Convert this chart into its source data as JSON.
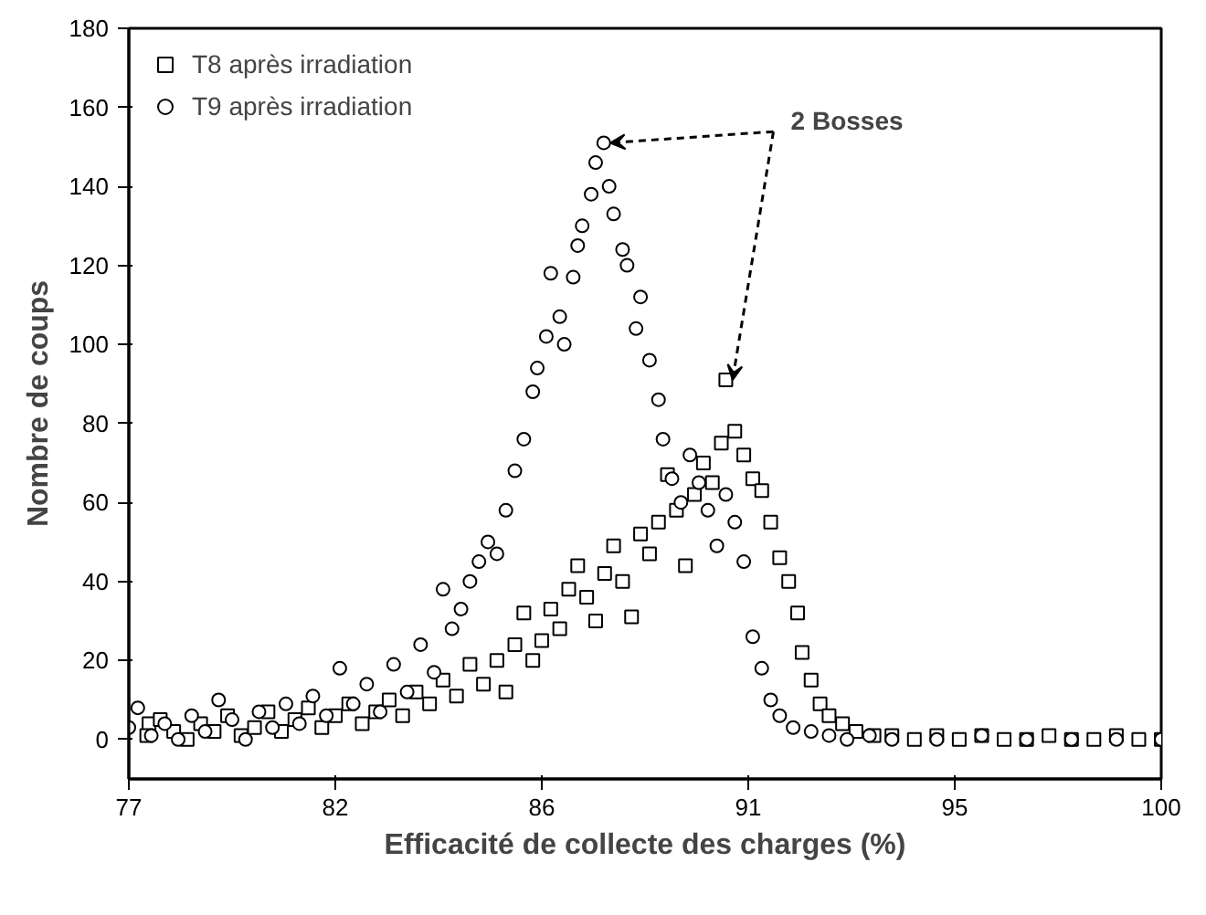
{
  "chart_data": {
    "type": "scatter",
    "xlabel": "Efficacité de collecte des charges (%)",
    "ylabel": "Nombre de coups",
    "xlim": [
      77,
      100
    ],
    "xticks": [
      77,
      {
        "value": 81.6,
        "label": "82"
      },
      {
        "value": 86.2,
        "label": "86"
      },
      {
        "value": 90.8,
        "label": "91"
      },
      {
        "value": 95.4,
        "label": "95"
      },
      100
    ],
    "ylim": [
      -10,
      180
    ],
    "yticks": [
      0,
      20,
      40,
      60,
      80,
      100,
      120,
      140,
      160,
      180
    ],
    "grid": false,
    "legend": "top left",
    "annotations": [
      {
        "text": "2 Bosses",
        "x": 87.58,
        "y": 151
      }
    ],
    "series": [
      {
        "name": "T8 après irradiation",
        "color": "#000000",
        "marker": "square",
        "x": [
          77.45,
          77.4,
          77.7,
          78.0,
          78.3,
          78.6,
          78.9,
          79.2,
          79.5,
          79.8,
          80.1,
          80.4,
          80.7,
          81.0,
          81.3,
          81.6,
          81.9,
          82.2,
          82.5,
          82.8,
          83.1,
          83.4,
          83.7,
          84.0,
          84.3,
          84.6,
          84.9,
          85.2,
          85.4,
          85.6,
          85.8,
          86.0,
          86.2,
          86.4,
          86.6,
          86.8,
          87.0,
          87.2,
          87.4,
          87.6,
          87.8,
          88.0,
          88.2,
          88.4,
          88.6,
          88.8,
          89.0,
          89.2,
          89.4,
          89.6,
          89.8,
          90.0,
          90.2,
          90.3,
          90.5,
          90.7,
          90.9,
          91.1,
          91.3,
          91.5,
          91.7,
          91.9,
          92.0,
          92.2,
          92.4,
          92.6,
          92.9,
          93.2,
          93.6,
          94,
          94.5,
          95,
          95.5,
          96,
          96.5,
          97,
          97.5,
          98,
          98.5,
          99,
          99.5,
          100
        ],
        "values": [
          4,
          1,
          5,
          2,
          0,
          4,
          2,
          6,
          1,
          3,
          7,
          2,
          5,
          8,
          3,
          6,
          9,
          4,
          7,
          10,
          6,
          12,
          9,
          15,
          11,
          19,
          14,
          20,
          12,
          24,
          32,
          20,
          25,
          33,
          28,
          38,
          44,
          36,
          30,
          42,
          49,
          40,
          31,
          52,
          47,
          55,
          67,
          58,
          44,
          62,
          70,
          65,
          75,
          91,
          78,
          72,
          66,
          63,
          55,
          46,
          40,
          32,
          22,
          15,
          9,
          6,
          4,
          2,
          1,
          1,
          0,
          1,
          0,
          1,
          0,
          0,
          1,
          0,
          0,
          1,
          0,
          0
        ]
      },
      {
        "name": "T9 après irradiation",
        "color": "#000000",
        "marker": "circle",
        "x": [
          77.0,
          77.2,
          77.5,
          77.8,
          78.1,
          78.4,
          78.7,
          79.0,
          79.3,
          79.6,
          79.9,
          80.2,
          80.5,
          80.8,
          81.1,
          81.4,
          81.7,
          82.0,
          82.3,
          82.6,
          82.9,
          83.2,
          83.5,
          83.8,
          84.0,
          84.2,
          84.4,
          84.6,
          84.8,
          85.0,
          85.2,
          85.4,
          85.6,
          85.8,
          86.0,
          86.1,
          86.3,
          86.4,
          86.6,
          86.7,
          86.9,
          87.0,
          87.1,
          87.3,
          87.4,
          87.58,
          87.7,
          87.8,
          88.0,
          88.1,
          88.3,
          88.4,
          88.6,
          88.8,
          88.9,
          89.1,
          89.3,
          89.5,
          89.7,
          89.9,
          90.1,
          90.3,
          90.5,
          90.7,
          90.9,
          91.1,
          91.3,
          91.5,
          91.8,
          92.2,
          92.6,
          93,
          93.5,
          94,
          95,
          96,
          97,
          98,
          99,
          100
        ],
        "values": [
          3,
          8,
          1,
          4,
          0,
          6,
          2,
          10,
          5,
          0,
          7,
          3,
          9,
          4,
          11,
          6,
          18,
          9,
          14,
          7,
          19,
          12,
          24,
          17,
          38,
          28,
          33,
          40,
          45,
          50,
          47,
          58,
          68,
          76,
          88,
          94,
          102,
          118,
          107,
          100,
          117,
          125,
          130,
          138,
          146,
          151,
          140,
          133,
          124,
          120,
          104,
          112,
          96,
          86,
          76,
          66,
          60,
          72,
          65,
          58,
          49,
          62,
          55,
          45,
          26,
          18,
          10,
          6,
          3,
          2,
          1,
          0,
          1,
          0,
          0,
          1,
          0,
          0,
          0,
          0
        ]
      }
    ]
  }
}
